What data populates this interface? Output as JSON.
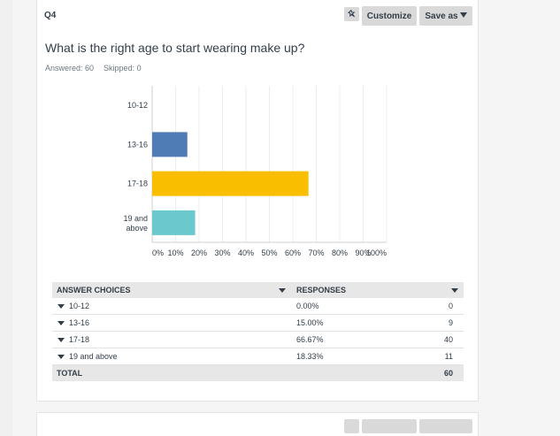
{
  "question": {
    "number": "Q4",
    "title": "What is the right age to start wearing make up?",
    "answered": "Answered: 60",
    "skipped": "Skipped: 0"
  },
  "toolbar": {
    "customize_label": "Customize",
    "saveas_label": "Save as"
  },
  "colors": {
    "bar1": "#e5e5e5",
    "bar2": "#507cb6",
    "bar3": "#f9be00",
    "bar4": "#6bc8cd"
  },
  "chart_data": {
    "type": "bar",
    "orientation": "horizontal",
    "categories": [
      "10-12",
      "13-16",
      "17-18",
      "19 and above"
    ],
    "values": [
      0,
      15,
      66.67,
      18.33
    ],
    "xticks": [
      "0%",
      "10%",
      "20%",
      "30%",
      "40%",
      "50%",
      "60%",
      "70%",
      "80%",
      "90%",
      "100%"
    ],
    "xlim": [
      0,
      100
    ],
    "xlabel": "",
    "ylabel": ""
  },
  "table": {
    "col_choices": "ANSWER CHOICES",
    "col_responses": "RESPONSES",
    "rows": [
      {
        "label": "10-12",
        "pct": "0.00%",
        "count": "0"
      },
      {
        "label": "13-16",
        "pct": "15.00%",
        "count": "9"
      },
      {
        "label": "17-18",
        "pct": "66.67%",
        "count": "40"
      },
      {
        "label": "19 and above",
        "pct": "18.33%",
        "count": "11"
      }
    ],
    "total_label": "TOTAL",
    "total_value": "60"
  }
}
